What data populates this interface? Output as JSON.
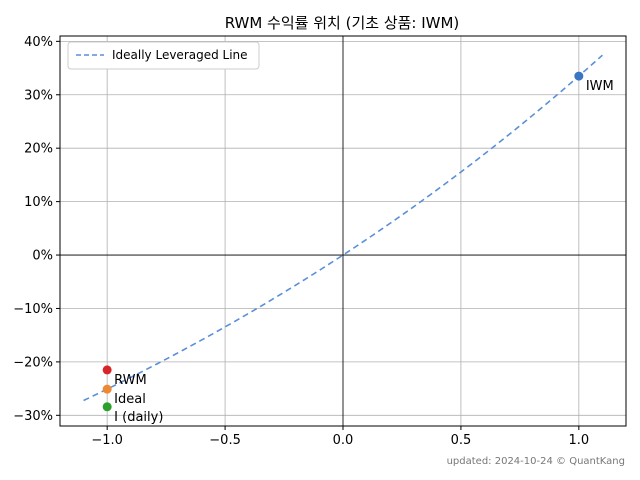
{
  "chart_data": {
    "type": "scatter",
    "title": "RWM 수익률 위치 (기초 상품: IWM)",
    "xlabel": "",
    "ylabel": "",
    "xlim": [
      -1.2,
      1.2
    ],
    "ylim": [
      -0.32,
      0.41
    ],
    "x_ticks": [
      -1.0,
      -0.5,
      0.0,
      0.5,
      1.0
    ],
    "x_tick_labels": [
      "−1.0",
      "−0.5",
      "0.0",
      "0.5",
      "1.0"
    ],
    "y_ticks": [
      -0.3,
      -0.2,
      -0.1,
      0.0,
      0.1,
      0.2,
      0.3,
      0.4
    ],
    "y_tick_labels": [
      "−30%",
      "−20%",
      "−10%",
      "0%",
      "10%",
      "20%",
      "30%",
      "40%"
    ],
    "grid": true,
    "legend": {
      "position": "top-left",
      "entries": [
        "Ideally Leveraged Line"
      ]
    },
    "line": {
      "name": "Ideally Leveraged Line",
      "color": "#5a8fd8",
      "style": "dashed",
      "x_range": [
        -1.1,
        1.1
      ],
      "formula": "(1+r)^x - 1",
      "base_return": 0.335
    },
    "points": [
      {
        "label": "IWM",
        "x": 1.0,
        "y": 0.335,
        "color": "#3a75c4"
      },
      {
        "label": "RWM",
        "x": -1.0,
        "y": -0.215,
        "color": "#d62728"
      },
      {
        "label": "Ideal",
        "x": -1.0,
        "y": -0.251,
        "color": "#ee8833"
      },
      {
        "label": "I (daily)",
        "x": -1.0,
        "y": -0.284,
        "color": "#2ca02c"
      }
    ],
    "footer": "updated: 2024-10-24 © QuantKang"
  }
}
